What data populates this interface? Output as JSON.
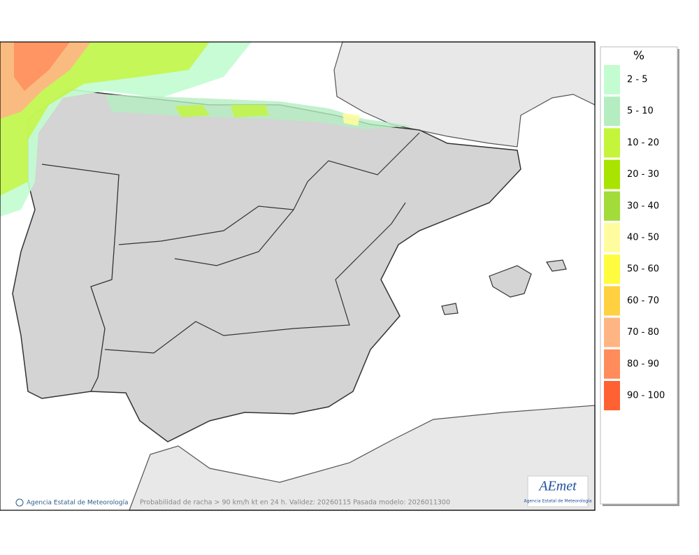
{
  "legend": {
    "title": "%",
    "items": [
      {
        "label": "2 - 5",
        "color": "#c2fcd0"
      },
      {
        "label": "5 - 10",
        "color": "#b4eec0"
      },
      {
        "label": "10 - 20",
        "color": "#c4f53a"
      },
      {
        "label": "20 - 30",
        "color": "#a8e400"
      },
      {
        "label": "30 - 40",
        "color": "#a2dc3a"
      },
      {
        "label": "40 - 50",
        "color": "#fffca0"
      },
      {
        "label": "50 - 60",
        "color": "#fffc40"
      },
      {
        "label": "60 - 70",
        "color": "#ffd040"
      },
      {
        "label": "70 - 80",
        "color": "#ffb484"
      },
      {
        "label": "80 - 90",
        "color": "#ff8c5a"
      },
      {
        "label": "90 - 100",
        "color": "#ff6232"
      }
    ]
  },
  "footer": {
    "copyright": "Agencia Estatal de Meteorología",
    "caption": "Probabilidad de racha > 90 km/h kt en 24 h. Validez: 20260115 Pasada modelo: 2026011300"
  },
  "logo": {
    "name": "AEmet",
    "subtitle": "Agencia Estatal de Meteorología"
  }
}
